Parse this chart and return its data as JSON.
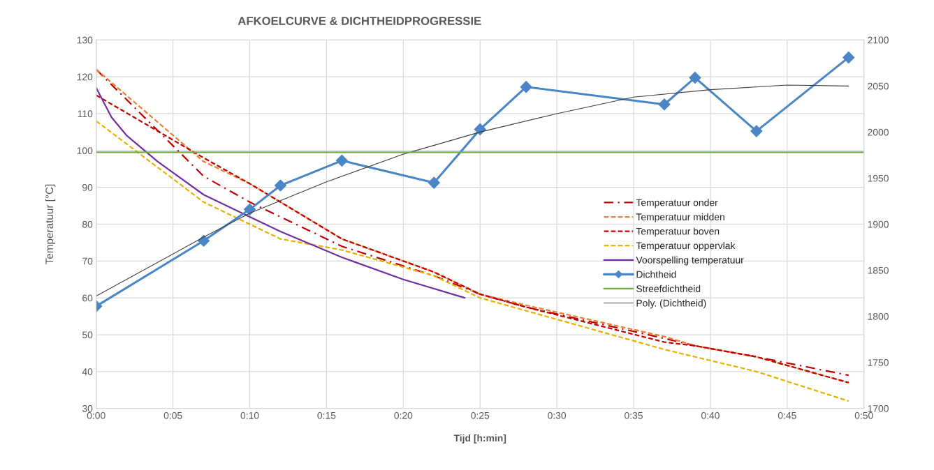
{
  "chart_data": {
    "type": "line",
    "title": "AFKOELCURVE & DICHTHEIDPROGRESSIE",
    "xlabel": "Tijd [h:min]",
    "ylabel": "Temperatuur [°C]",
    "x": [
      0,
      7,
      10,
      12,
      16,
      22,
      25,
      28,
      37,
      39,
      43,
      49
    ],
    "series": [
      {
        "name": "Temperatuur onder",
        "color": "#c00000",
        "line_style": "dashdot",
        "values": [
          122,
          93,
          86,
          82,
          74,
          66,
          61,
          57.5,
          49,
          47,
          44,
          39
        ]
      },
      {
        "name": "Temperatuur midden",
        "color": "#ed7d31",
        "line_style": "dashed",
        "values": [
          122,
          97,
          91,
          86,
          76,
          67,
          61,
          58,
          49.5,
          47,
          44,
          37
        ]
      },
      {
        "name": "Temperatuur boven",
        "color": "#c00000",
        "line_style": "dashed",
        "values": [
          115,
          98,
          91,
          86,
          76,
          67,
          61,
          57.5,
          48,
          47,
          44,
          37
        ]
      },
      {
        "name": "Temperatuur oppervlak",
        "color": "#e8b000",
        "line_style": "dashed",
        "values": [
          108,
          86,
          80,
          76,
          73,
          66,
          60,
          56.5,
          46,
          44,
          40,
          32
        ]
      },
      {
        "name": "Voorspelling temperatuur",
        "color": "#7030a0",
        "line_style": "solid",
        "x": [
          0,
          1,
          2,
          4,
          7,
          10,
          12,
          16,
          20,
          24
        ],
        "values": [
          117,
          109,
          104,
          97,
          88,
          82,
          78,
          71,
          65,
          60
        ]
      },
      {
        "name": "Dichtheid",
        "color": "#4a86c5",
        "line_style": "solid",
        "marker": "diamond",
        "axis": "y2",
        "values": [
          1811,
          1882,
          1916,
          1942,
          1969,
          1945,
          2003,
          2049,
          2030,
          2059,
          2001,
          2081
        ]
      },
      {
        "name": "Poly. (Dichtheid)",
        "color": "#404040",
        "line_style": "solid",
        "axis": "y2",
        "x": [
          0,
          7,
          10,
          15,
          20,
          25,
          30,
          35,
          40,
          45,
          49
        ],
        "values": [
          1822,
          1886,
          1912,
          1946,
          1976,
          2000,
          2020,
          2038,
          2046,
          2051,
          2050
        ]
      }
    ],
    "ref_lines": [
      {
        "axis": "y2",
        "value": 1978,
        "label": "Streefdichtheid",
        "color": "#70ad47"
      }
    ],
    "xlim": [
      0,
      50
    ],
    "xticks": [
      {
        "value": 0,
        "label": "0:00"
      },
      {
        "value": 5,
        "label": "0:05"
      },
      {
        "value": 10,
        "label": "0:10"
      },
      {
        "value": 15,
        "label": "0:15"
      },
      {
        "value": 20,
        "label": "0:20"
      },
      {
        "value": 25,
        "label": "0:25"
      },
      {
        "value": 30,
        "label": "0:30"
      },
      {
        "value": 35,
        "label": "0:35"
      },
      {
        "value": 40,
        "label": "0:40"
      },
      {
        "value": 45,
        "label": "0:45"
      },
      {
        "value": 50,
        "label": "0:50"
      }
    ],
    "ylim": [
      30,
      130
    ],
    "yticks": [
      30,
      40,
      50,
      60,
      70,
      80,
      90,
      100,
      110,
      120,
      130
    ],
    "y2lim": [
      1700,
      2100
    ],
    "y2ticks": [
      1700,
      1750,
      1800,
      1850,
      1900,
      1950,
      2000,
      2050,
      2100
    ],
    "grid": true,
    "legend": "right"
  }
}
